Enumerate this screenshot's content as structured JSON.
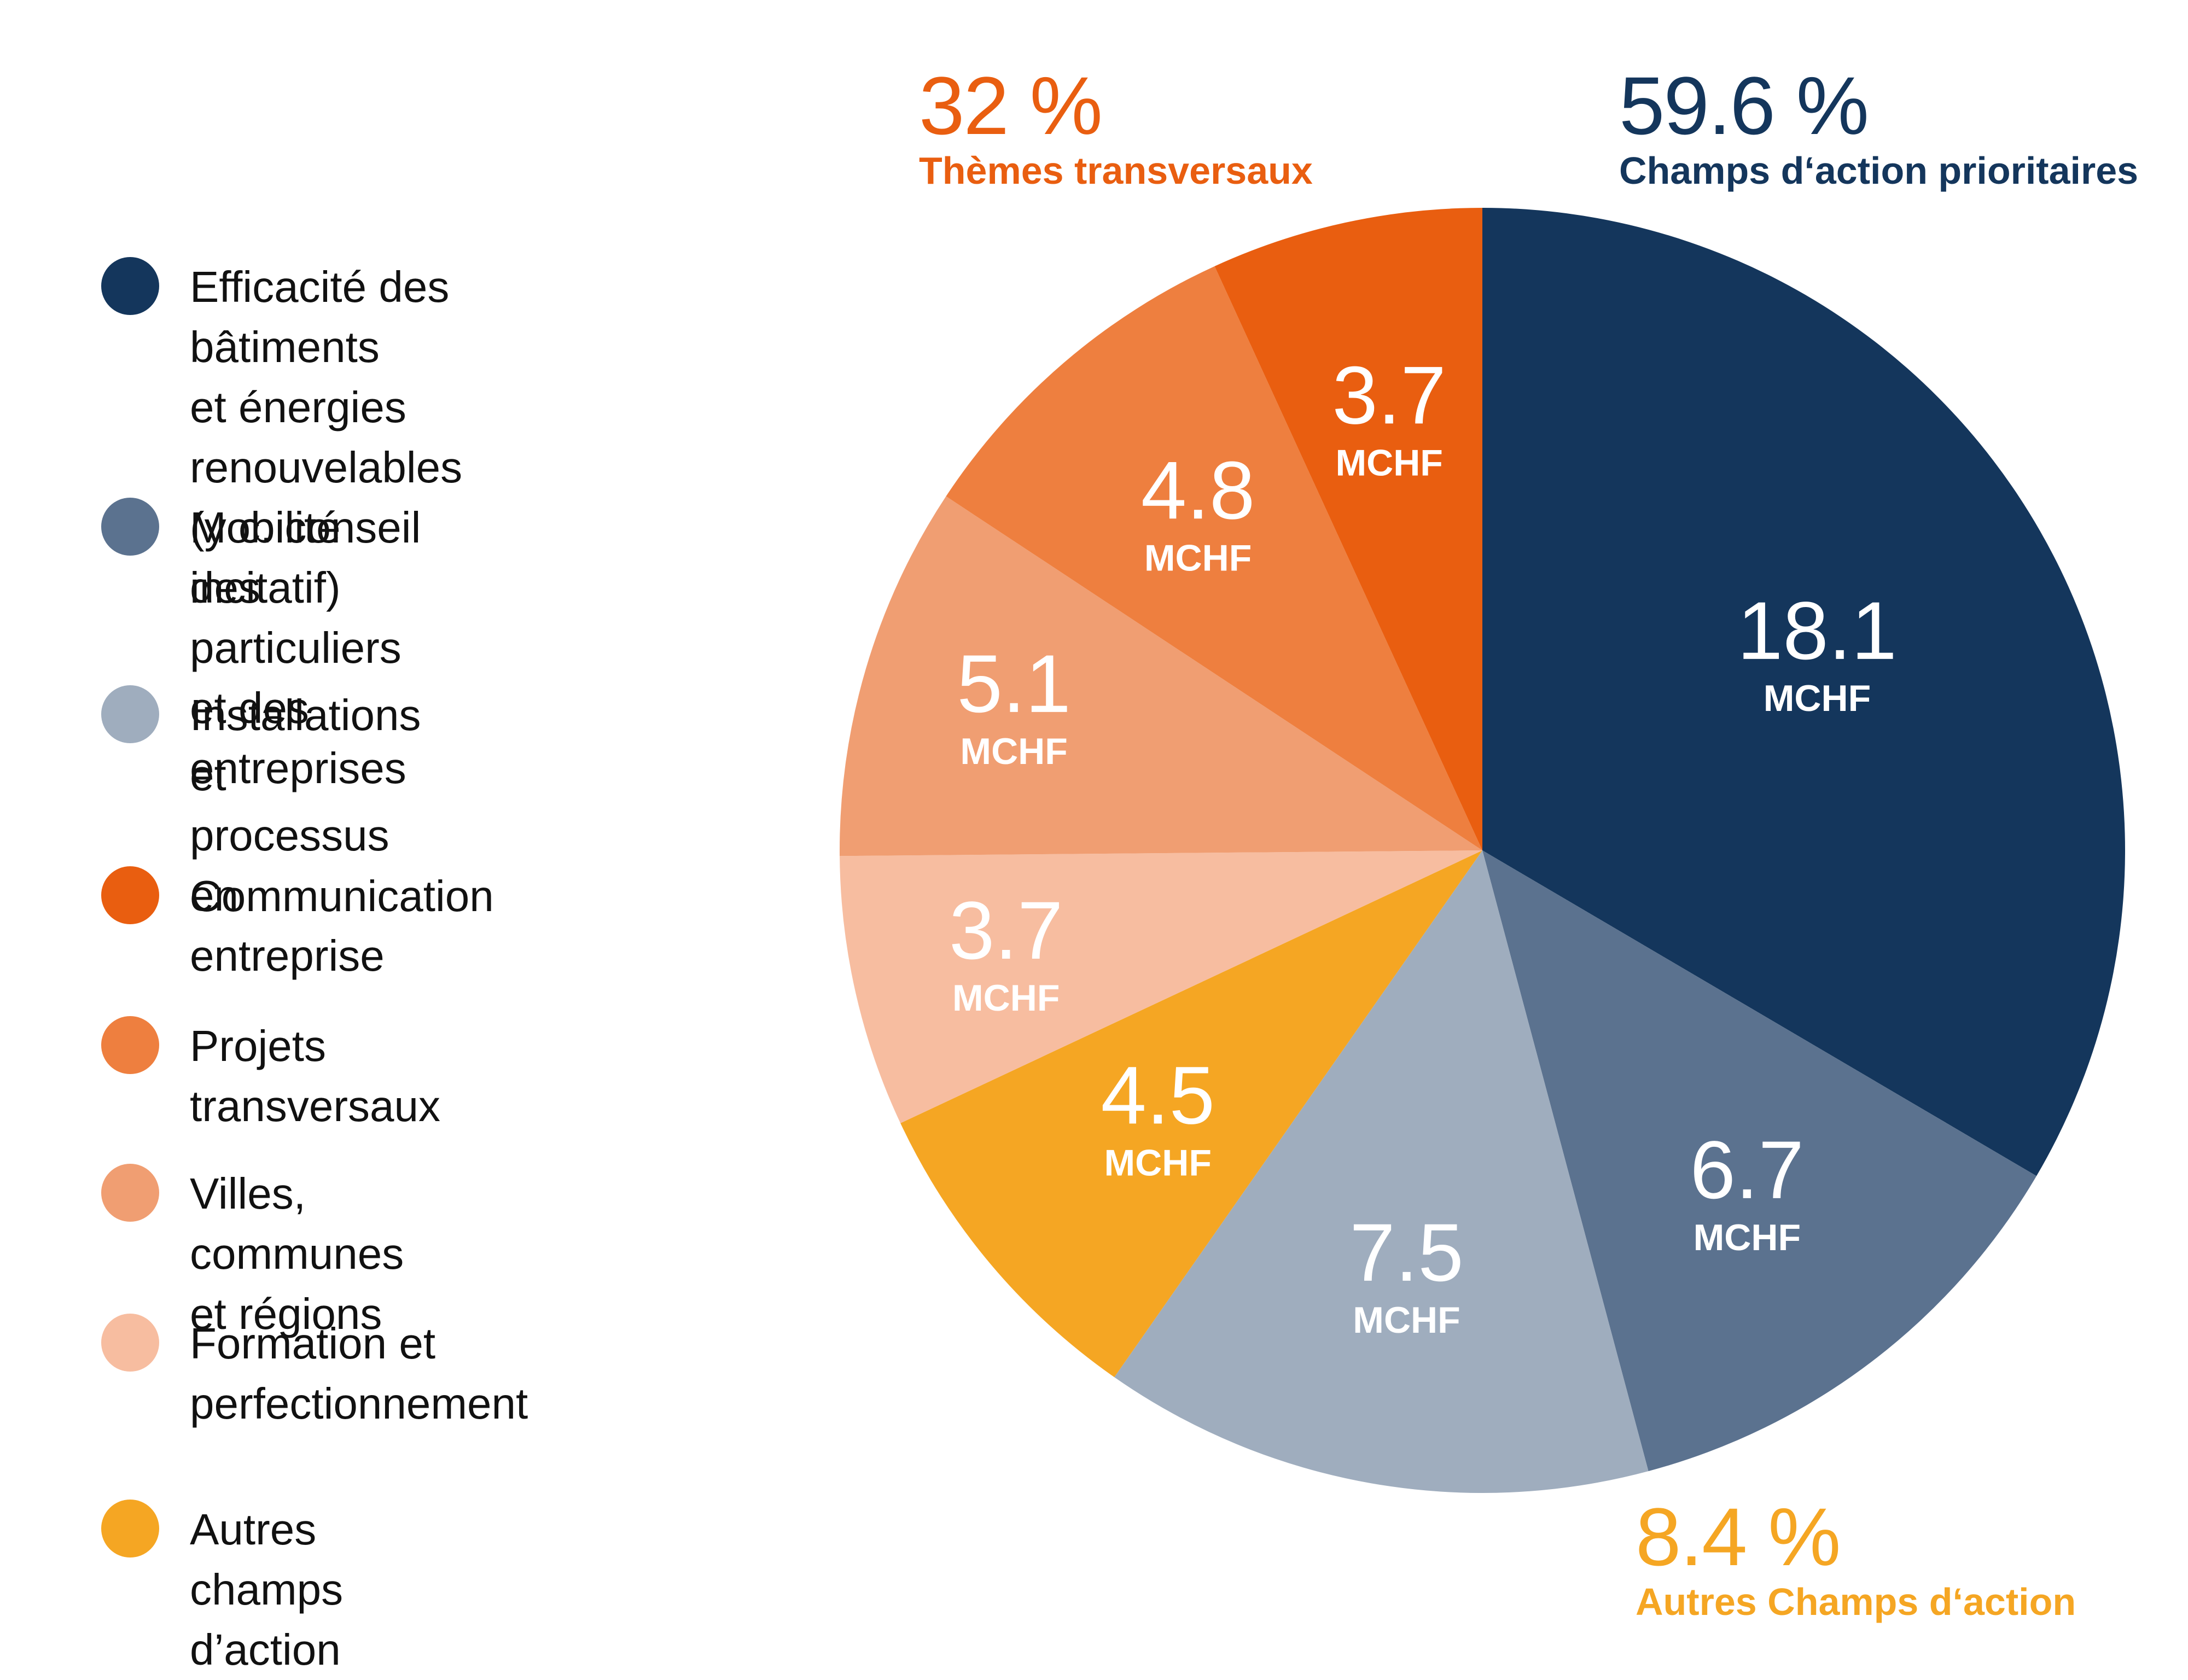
{
  "chart_data": {
    "type": "pie",
    "unit": "MCHF",
    "slices": [
      {
        "name": "Efficacité des bâtiments et énergies renouvelables (y c. conseil incitatif)",
        "value": 18.1,
        "color": "#14365c"
      },
      {
        "name": "Mobilité des particuliers et des entreprises",
        "value": 6.7,
        "color": "#5b728f"
      },
      {
        "name": "Installations et processus en entreprise",
        "value": 7.5,
        "color": "#9fadbe"
      },
      {
        "name": "Autres champs d’action",
        "value": 4.5,
        "color": "#f5a623"
      },
      {
        "name": "Formation et perfectionnement",
        "value": 3.7,
        "color": "#f7bda0"
      },
      {
        "name": "Villes, communes et régions",
        "value": 5.1,
        "color": "#f09e72"
      },
      {
        "name": "Projets transversaux",
        "value": 4.8,
        "color": "#ee7f3f"
      },
      {
        "name": "Communication",
        "value": 3.7,
        "color": "#e95e10"
      }
    ],
    "groups": [
      {
        "percent": "59.6 %",
        "name": "Champs d‘action prioritaires",
        "color": "#14365c"
      },
      {
        "percent": "32 %",
        "name": "Thèmes transversaux",
        "color": "#e95e10"
      },
      {
        "percent": "8.4 %",
        "name": "Autres Champs d‘action",
        "color": "#f5a623"
      }
    ]
  },
  "legend": [
    {
      "label": "Efficacité des bâtiments\net énergies renouvelables\n(y c. conseil incitatif)",
      "color": "#14365c"
    },
    {
      "label": "Mobilité des particuliers\net des entreprises",
      "color": "#5b728f"
    },
    {
      "label": "Installations et processus\nen entreprise",
      "color": "#9fadbe"
    },
    {
      "label": "Communication",
      "color": "#e95e10"
    },
    {
      "label": "Projets transversaux",
      "color": "#ee7f3f"
    },
    {
      "label": "Villes, communes et régions",
      "color": "#f09e72"
    },
    {
      "label": "Formation et\nperfectionnement",
      "color": "#f7bda0"
    },
    {
      "label": "Autres champs d’action",
      "color": "#f5a623"
    }
  ]
}
